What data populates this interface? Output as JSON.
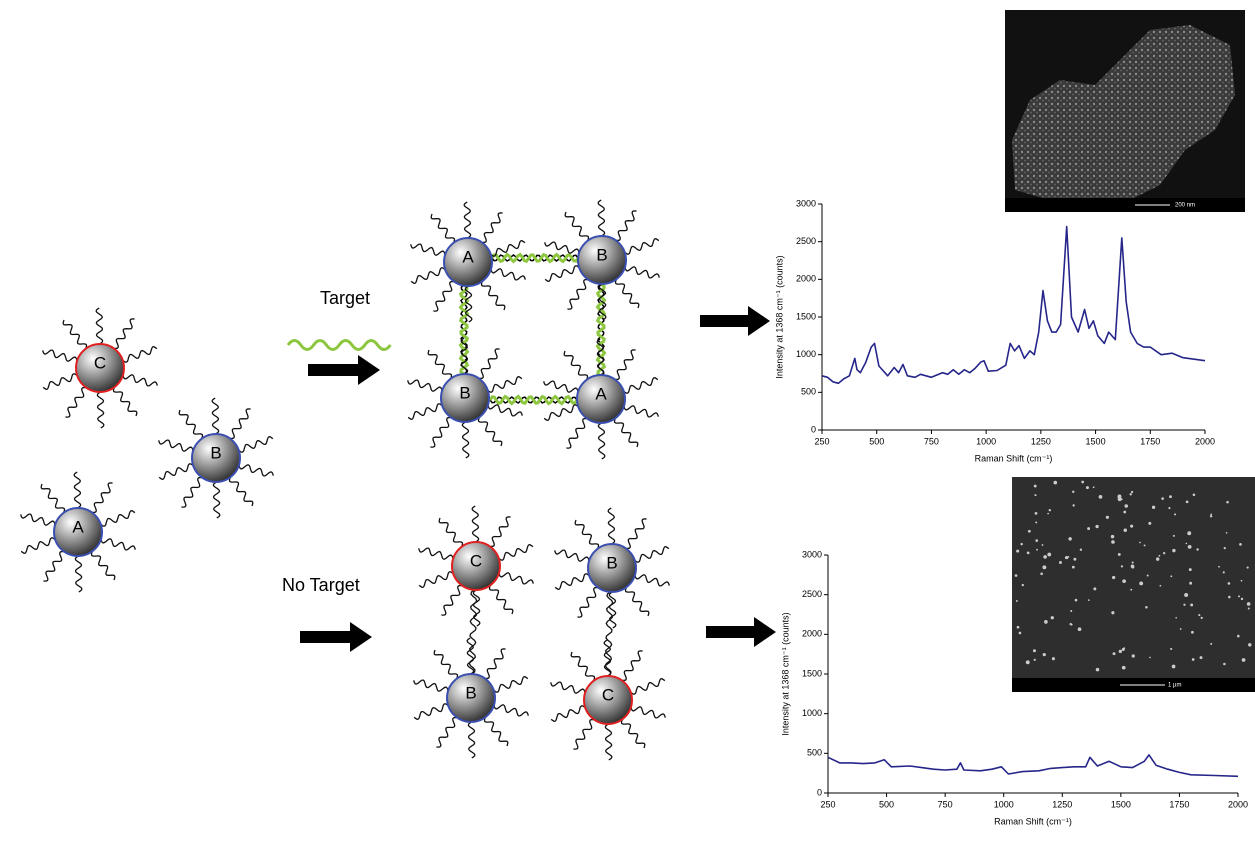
{
  "labels": {
    "target": "Target",
    "no_target": "No Target"
  },
  "particles": {
    "free": [
      "C",
      "B",
      "A"
    ],
    "target": [
      "A",
      "B",
      "B",
      "A"
    ],
    "no_target": [
      "C",
      "B",
      "B",
      "C"
    ]
  },
  "sem": {
    "top_scale": "200 nm",
    "bottom_scale": "1 µm"
  },
  "chart_data": [
    {
      "type": "line",
      "xlabel": "Raman Shift (cm⁻¹)",
      "ylabel": "Intensity at 1368 cm⁻¹ (counts)",
      "xlim": [
        250,
        2000
      ],
      "xticks": [
        250,
        500,
        750,
        1000,
        1250,
        1500,
        1750,
        2000
      ],
      "ylim": [
        0,
        3000
      ],
      "yticks": [
        0,
        500,
        1000,
        1500,
        2000,
        2500,
        3000
      ],
      "series": [
        {
          "color": "#26268a",
          "x": [
            250,
            275,
            300,
            325,
            350,
            375,
            400,
            410,
            425,
            450,
            475,
            490,
            510,
            550,
            580,
            600,
            620,
            640,
            675,
            700,
            750,
            800,
            825,
            850,
            875,
            900,
            925,
            950,
            975,
            990,
            1010,
            1050,
            1090,
            1110,
            1130,
            1150,
            1175,
            1200,
            1220,
            1240,
            1260,
            1280,
            1300,
            1320,
            1340,
            1368,
            1390,
            1420,
            1450,
            1470,
            1490,
            1510,
            1540,
            1560,
            1590,
            1620,
            1640,
            1660,
            1690,
            1720,
            1750,
            1800,
            1850,
            1900,
            1950,
            2000
          ],
          "values": [
            720,
            700,
            640,
            620,
            680,
            720,
            950,
            800,
            760,
            900,
            1100,
            1150,
            850,
            720,
            830,
            760,
            870,
            720,
            700,
            740,
            700,
            760,
            740,
            800,
            740,
            800,
            760,
            820,
            900,
            920,
            780,
            790,
            860,
            1150,
            1050,
            1120,
            950,
            1050,
            1000,
            1300,
            1850,
            1450,
            1300,
            1300,
            1400,
            2700,
            1500,
            1300,
            1600,
            1350,
            1450,
            1250,
            1150,
            1300,
            1200,
            2550,
            1700,
            1300,
            1150,
            1100,
            1100,
            1000,
            1020,
            960,
            940,
            920
          ]
        }
      ]
    },
    {
      "type": "line",
      "xlabel": "Raman Shift (cm⁻¹)",
      "ylabel": "Intensity at 1368 cm⁻¹ (counts)",
      "xlim": [
        250,
        2000
      ],
      "xticks": [
        250,
        500,
        750,
        1000,
        1250,
        1500,
        1750,
        2000
      ],
      "ylim": [
        0,
        3000
      ],
      "yticks": [
        0,
        500,
        1000,
        1500,
        2000,
        2500,
        3000
      ],
      "series": [
        {
          "color": "#26268a",
          "x": [
            250,
            300,
            350,
            400,
            450,
            490,
            520,
            600,
            650,
            700,
            750,
            800,
            815,
            830,
            900,
            950,
            990,
            1020,
            1080,
            1150,
            1200,
            1250,
            1300,
            1350,
            1368,
            1400,
            1450,
            1500,
            1550,
            1600,
            1620,
            1650,
            1700,
            1750,
            1800,
            1900,
            2000
          ],
          "values": [
            450,
            380,
            380,
            370,
            380,
            420,
            330,
            340,
            320,
            300,
            290,
            300,
            380,
            290,
            280,
            300,
            330,
            240,
            270,
            280,
            310,
            320,
            330,
            330,
            450,
            340,
            400,
            330,
            320,
            400,
            480,
            350,
            300,
            260,
            230,
            220,
            210
          ]
        }
      ]
    }
  ]
}
